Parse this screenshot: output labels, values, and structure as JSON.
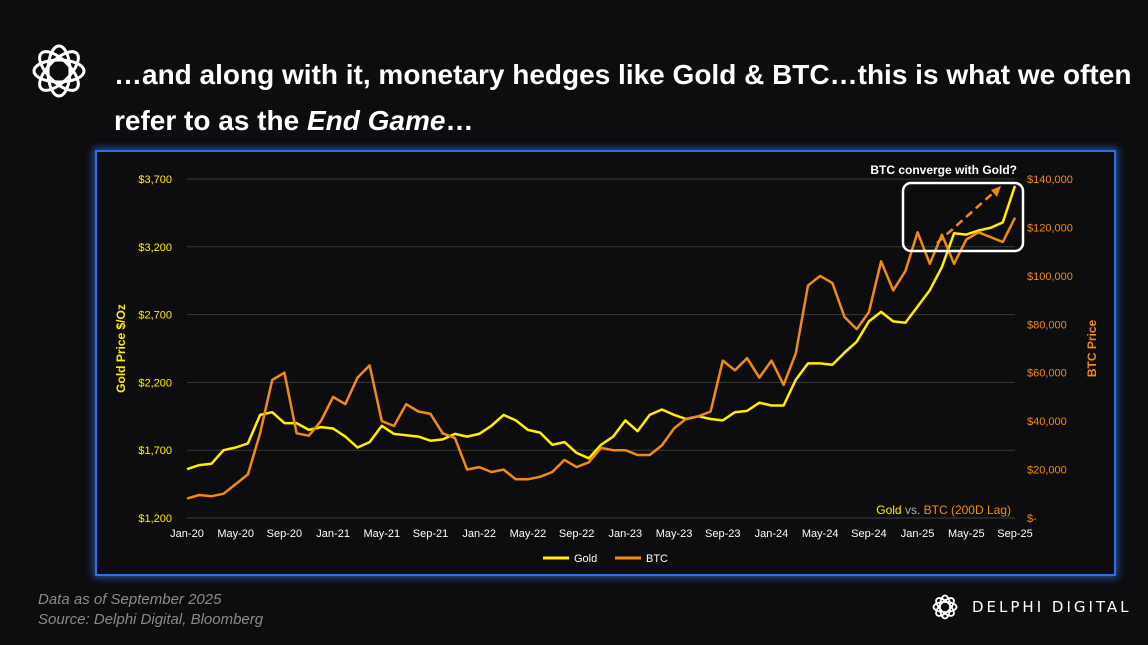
{
  "header": {
    "logo_icon": "delphi-knot-icon",
    "headline_part1": "…and along with it, monetary hedges like Gold & BTC…this is what we often refer to as the ",
    "headline_emph": "End Game",
    "headline_part2": "…"
  },
  "footer": {
    "line1": "Data as of September  2025",
    "line2": "Source:  Delphi Digital, Bloomberg",
    "brand_name": "DELPHI DIGITAL",
    "brand_icon": "delphi-knot-icon"
  },
  "colors": {
    "gold": "#ffee00",
    "btc": "#f08a17",
    "frame": "#2f6fe0",
    "background": "#0d0d0f"
  },
  "chart_data": {
    "type": "line",
    "title": "",
    "annotation": "BTC converge with Gold?",
    "watermark": {
      "part1": "Gold",
      "part2": " vs. ",
      "part3": "BTC (200D Lag)"
    },
    "x_ticks": [
      "Jan-20",
      "May-20",
      "Sep-20",
      "Jan-21",
      "May-21",
      "Sep-21",
      "Jan-22",
      "May-22",
      "Sep-22",
      "Jan-23",
      "May-23",
      "Sep-23",
      "Jan-24",
      "May-24",
      "Sep-24",
      "Jan-25",
      "May-25",
      "Sep-25"
    ],
    "x_range": [
      "2020-01",
      "2025-09"
    ],
    "y_left": {
      "label": "Gold Price $/Oz",
      "min": 1200,
      "max": 3700,
      "ticks": [
        "$1,200",
        "$1,700",
        "$2,200",
        "$2,700",
        "$3,200",
        "$3,700"
      ]
    },
    "y_right": {
      "label": "BTC Price",
      "min": 0,
      "max": 140000,
      "ticks": [
        "$-",
        "$20,000",
        "$40,000",
        "$60,000",
        "$80,000",
        "$100,000",
        "$120,000",
        "$140,000"
      ]
    },
    "grid": true,
    "legend_position": "bottom",
    "series": [
      {
        "name": "Gold",
        "axis": "left",
        "x": [
          "2020-01",
          "2020-02",
          "2020-03",
          "2020-04",
          "2020-05",
          "2020-06",
          "2020-07",
          "2020-08",
          "2020-09",
          "2020-10",
          "2020-11",
          "2020-12",
          "2021-01",
          "2021-02",
          "2021-03",
          "2021-04",
          "2021-05",
          "2021-06",
          "2021-07",
          "2021-08",
          "2021-09",
          "2021-10",
          "2021-11",
          "2021-12",
          "2022-01",
          "2022-02",
          "2022-03",
          "2022-04",
          "2022-05",
          "2022-06",
          "2022-07",
          "2022-08",
          "2022-09",
          "2022-10",
          "2022-11",
          "2022-12",
          "2023-01",
          "2023-02",
          "2023-03",
          "2023-04",
          "2023-05",
          "2023-06",
          "2023-07",
          "2023-08",
          "2023-09",
          "2023-10",
          "2023-11",
          "2023-12",
          "2024-01",
          "2024-02",
          "2024-03",
          "2024-04",
          "2024-05",
          "2024-06",
          "2024-07",
          "2024-08",
          "2024-09",
          "2024-10",
          "2024-11",
          "2024-12",
          "2025-01",
          "2025-02",
          "2025-03",
          "2025-04",
          "2025-05",
          "2025-06",
          "2025-07",
          "2025-08",
          "2025-09"
        ],
        "values": [
          1560,
          1590,
          1600,
          1700,
          1720,
          1750,
          1960,
          1980,
          1900,
          1900,
          1850,
          1870,
          1860,
          1800,
          1720,
          1760,
          1880,
          1820,
          1810,
          1800,
          1770,
          1780,
          1820,
          1800,
          1820,
          1880,
          1960,
          1920,
          1850,
          1830,
          1740,
          1760,
          1680,
          1640,
          1740,
          1800,
          1920,
          1840,
          1960,
          2000,
          1960,
          1930,
          1950,
          1930,
          1920,
          1980,
          1990,
          2050,
          2030,
          2030,
          2220,
          2340,
          2340,
          2330,
          2420,
          2500,
          2650,
          2720,
          2650,
          2640,
          2760,
          2880,
          3050,
          3300,
          3290,
          3320,
          3340,
          3380,
          3650
        ]
      },
      {
        "name": "BTC",
        "axis": "right",
        "x": [
          "2020-01",
          "2020-02",
          "2020-03",
          "2020-04",
          "2020-05",
          "2020-06",
          "2020-07",
          "2020-08",
          "2020-09",
          "2020-10",
          "2020-11",
          "2020-12",
          "2021-01",
          "2021-02",
          "2021-03",
          "2021-04",
          "2021-05",
          "2021-06",
          "2021-07",
          "2021-08",
          "2021-09",
          "2021-10",
          "2021-11",
          "2021-12",
          "2022-01",
          "2022-02",
          "2022-03",
          "2022-04",
          "2022-05",
          "2022-06",
          "2022-07",
          "2022-08",
          "2022-09",
          "2022-10",
          "2022-11",
          "2022-12",
          "2023-01",
          "2023-02",
          "2023-03",
          "2023-04",
          "2023-05",
          "2023-06",
          "2023-07",
          "2023-08",
          "2023-09",
          "2023-10",
          "2023-11",
          "2023-12",
          "2024-01",
          "2024-02",
          "2024-03",
          "2024-04",
          "2024-05",
          "2024-06",
          "2024-07",
          "2024-08",
          "2024-09",
          "2024-10",
          "2024-11",
          "2024-12",
          "2025-01",
          "2025-02",
          "2025-03",
          "2025-04",
          "2025-05",
          "2025-06",
          "2025-07",
          "2025-08",
          "2025-09"
        ],
        "values": [
          8000,
          9500,
          9000,
          10000,
          14000,
          18000,
          35000,
          57000,
          60000,
          35000,
          34000,
          40000,
          50000,
          47000,
          58000,
          63000,
          40000,
          38000,
          47000,
          44000,
          43000,
          35000,
          33000,
          20000,
          21000,
          19000,
          20000,
          16000,
          16000,
          17000,
          19000,
          24000,
          21000,
          23000,
          29000,
          28000,
          28000,
          26000,
          26000,
          30000,
          37000,
          41000,
          42000,
          44000,
          65000,
          61000,
          66000,
          58000,
          65000,
          55000,
          68000,
          96000,
          100000,
          97000,
          83000,
          78000,
          85000,
          106000,
          94000,
          102000,
          118000,
          105000,
          117000,
          105000,
          115000,
          118000,
          116000,
          114000,
          124000
        ]
      }
    ]
  }
}
